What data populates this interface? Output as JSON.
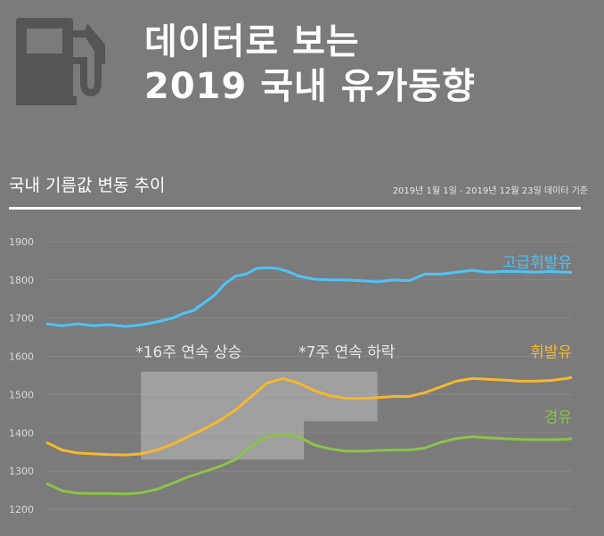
{
  "header": {
    "title_line1": "데이터로 보는",
    "title_line2": "2019 국내 유가동향",
    "icon": "fuel-pump-icon"
  },
  "subtitle": "국내 기름값 변동 추이",
  "source_note": "2019년 1월 1일 - 2019년 12월 23일 데이터 기준",
  "chart_data": {
    "type": "line",
    "title": "국내 기름값 변동 추이",
    "xlabel": "",
    "ylabel": "",
    "x_range": [
      "2019-01-01",
      "2019-12-23"
    ],
    "ylim": [
      1200,
      1900
    ],
    "yticks": [
      1900,
      1800,
      1700,
      1600,
      1500,
      1400,
      1300,
      1200
    ],
    "grid": true,
    "series": [
      {
        "name": "고급휘발유",
        "color": "#4fc3f7",
        "x": [
          0,
          3,
          6,
          9,
          12,
          15,
          18,
          21,
          24,
          26,
          28,
          30,
          32,
          34,
          36,
          38,
          40,
          42,
          44,
          46,
          48,
          51,
          54,
          57,
          60,
          63,
          66,
          69,
          72,
          75,
          78,
          81,
          84,
          87,
          90,
          93,
          96,
          99,
          100
        ],
        "values": [
          1685,
          1680,
          1685,
          1680,
          1683,
          1678,
          1682,
          1690,
          1700,
          1712,
          1720,
          1740,
          1760,
          1790,
          1810,
          1815,
          1830,
          1832,
          1830,
          1822,
          1810,
          1802,
          1800,
          1800,
          1798,
          1795,
          1800,
          1798,
          1815,
          1815,
          1820,
          1825,
          1820,
          1822,
          1822,
          1820,
          1822,
          1820,
          1820
        ]
      },
      {
        "name": "휘발유",
        "color": "#f5b82e",
        "x": [
          0,
          3,
          6,
          9,
          12,
          15,
          18,
          21,
          24,
          27,
          30,
          33,
          36,
          39,
          42,
          45,
          48,
          51,
          54,
          57,
          60,
          63,
          66,
          69,
          72,
          75,
          78,
          81,
          84,
          87,
          90,
          93,
          96,
          99,
          100
        ],
        "values": [
          1375,
          1355,
          1347,
          1345,
          1343,
          1342,
          1345,
          1355,
          1370,
          1390,
          1410,
          1432,
          1460,
          1495,
          1530,
          1542,
          1530,
          1510,
          1497,
          1490,
          1490,
          1492,
          1495,
          1495,
          1505,
          1520,
          1535,
          1542,
          1540,
          1538,
          1535,
          1535,
          1537,
          1542,
          1545
        ]
      },
      {
        "name": "경유",
        "color": "#8bc34a",
        "x": [
          0,
          3,
          6,
          9,
          12,
          15,
          18,
          21,
          24,
          27,
          30,
          33,
          36,
          39,
          42,
          45,
          48,
          51,
          54,
          57,
          60,
          63,
          66,
          69,
          72,
          75,
          78,
          81,
          84,
          87,
          90,
          93,
          96,
          99,
          100
        ],
        "values": [
          1268,
          1248,
          1242,
          1241,
          1241,
          1240,
          1243,
          1252,
          1268,
          1285,
          1298,
          1312,
          1330,
          1365,
          1390,
          1395,
          1390,
          1368,
          1358,
          1352,
          1352,
          1354,
          1355,
          1355,
          1360,
          1375,
          1385,
          1390,
          1387,
          1385,
          1383,
          1382,
          1382,
          1383,
          1385
        ]
      }
    ],
    "annotations": [
      {
        "text": "*16주 연속 상승",
        "x_from": 18,
        "x_to": 49,
        "y_from": 1330,
        "y_to": 1560
      },
      {
        "text": "*7주 연속 하락",
        "x_from": 49,
        "x_to": 63,
        "y_from": 1430,
        "y_to": 1560
      }
    ]
  }
}
